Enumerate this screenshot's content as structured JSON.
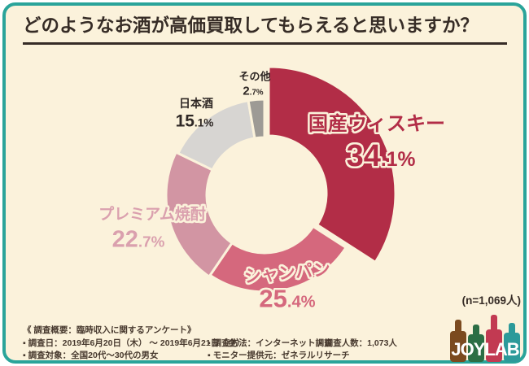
{
  "title": "どのようなお酒が高価買取してもらえると思いますか？",
  "chart_data": {
    "type": "pie",
    "subtype": "donut",
    "title": "どのようなお酒が高価買取してもらえると思いますか？",
    "categories": [
      "国産ウィスキー",
      "シャンパン",
      "プレミアム焼酎",
      "日本酒",
      "その他"
    ],
    "values": [
      34.1,
      25.4,
      22.7,
      15.1,
      2.7
    ],
    "unit": "%",
    "colors": [
      "#b22d47",
      "#d5687d",
      "#d295a3",
      "#d7d5d2",
      "#9d9a95"
    ],
    "label_colors": [
      "#b22d47",
      "#d5687d",
      "#daa0ae",
      "#2f2825",
      "#2f2825"
    ],
    "start_angle_deg": 0,
    "direction": "clockwise",
    "emphasized_slice": "国産ウィスキー",
    "legend_position": "labels-around-donut",
    "sample_size_note": "(n=1,069人)"
  },
  "survey": {
    "heading": "《 調査概要：臨時収入に関するアンケート》",
    "date": "▪ 調査日：2019年6月20日（木） ～ 2019年6月21日（金）",
    "method": "▪ 調査方法：インターネット調査",
    "count": "▪ 調査人数：1,073人",
    "target": "▪ 調査対象：全国20代～30代の男女",
    "provider": "▪ モニター提供元：ゼネラルリサーチ"
  },
  "n_label": "(n=1,069人)",
  "logo": {
    "text": "JOYLAB",
    "bottle_colors": [
      "#7b4a1f",
      "#2c6e45",
      "#c23a52",
      "#2c9a9a"
    ],
    "text_color": "#ffffff"
  },
  "theme": {
    "card_background": "#fbf2db",
    "border_color": "#2aa49a",
    "title_color": "#362c26",
    "footer_color": "#47392e"
  }
}
